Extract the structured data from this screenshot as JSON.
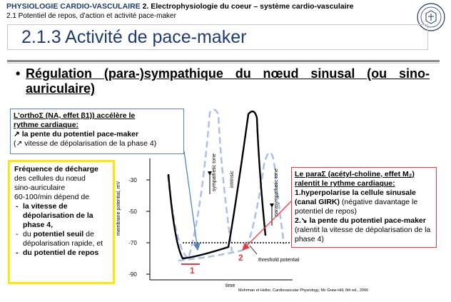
{
  "header": {
    "course": "PHYSIOLOGIE CARDIO-VASCULAIRE",
    "chapter": "2. Electrophysiologie du coeur – système cardio-vasculaire",
    "section": "2.1 Potentiel de repos, d’action et activité pace-maker"
  },
  "title": "2.1.3 Activité de pace-maker",
  "bullet": "Régulation (para-)sympathique du nœud sinusal (ou sino-auriculaire)",
  "box_ortho": {
    "line1": "L’orthoΣ (NA, effet β1)) accélère le",
    "line2": "rythme cardiaque:",
    "line3": "↗ la pente du potentiel pace-maker",
    "line4": "(↗ vitesse de dépolarisation de la phase 4)"
  },
  "box_frequency": {
    "line1": "Fréquence de décharge",
    "line2": "des cellules du nœud",
    "line3": "sino-auriculaire",
    "line4": "60-100/min dépend de",
    "item1": "la vitesse de dépolarisation de la phase 4,",
    "item2_a": "du ",
    "item2_b": "potentiel seuil",
    "item2_c": " de dépolarisation rapide, et",
    "item3": "du potentiel de repos"
  },
  "box_para": {
    "line1": "Le paraΣ (acétyl-choline, effet M₂)",
    "line2": "ralentit le rythme cardiaque:",
    "item1_a": "1.hyperpolarise la cellule sinusale (canal GIRK)",
    "item1_b": " (négative davantage le potentiel de repos)",
    "item2_a": "2.↘ la pente du potentiel pace-maker",
    "item2_b": " (ralentit la vitesse de dépolarisation de la phase 4)"
  },
  "chart": {
    "ylabel": "membrane potential, mV",
    "xlabel": "time",
    "yticks": [
      "-30",
      "-50",
      "-70",
      "-90"
    ],
    "labels": {
      "sympathetic": "sympathetic tone",
      "intrinsic": "intrinsic",
      "parasympathetic": "parasympathetic tone",
      "threshold": "threshold potential"
    },
    "marker1": "1",
    "marker2": "2",
    "colors": {
      "curve": "#000000",
      "dashed": "#a9c1e8",
      "blue_arrow": "#4d86c6",
      "red": "#e23b3b"
    }
  },
  "credit": "Mohrman et Heller, Cardiovascular Physiology, Mc Graw-Hill, 6th ed., 2006"
}
